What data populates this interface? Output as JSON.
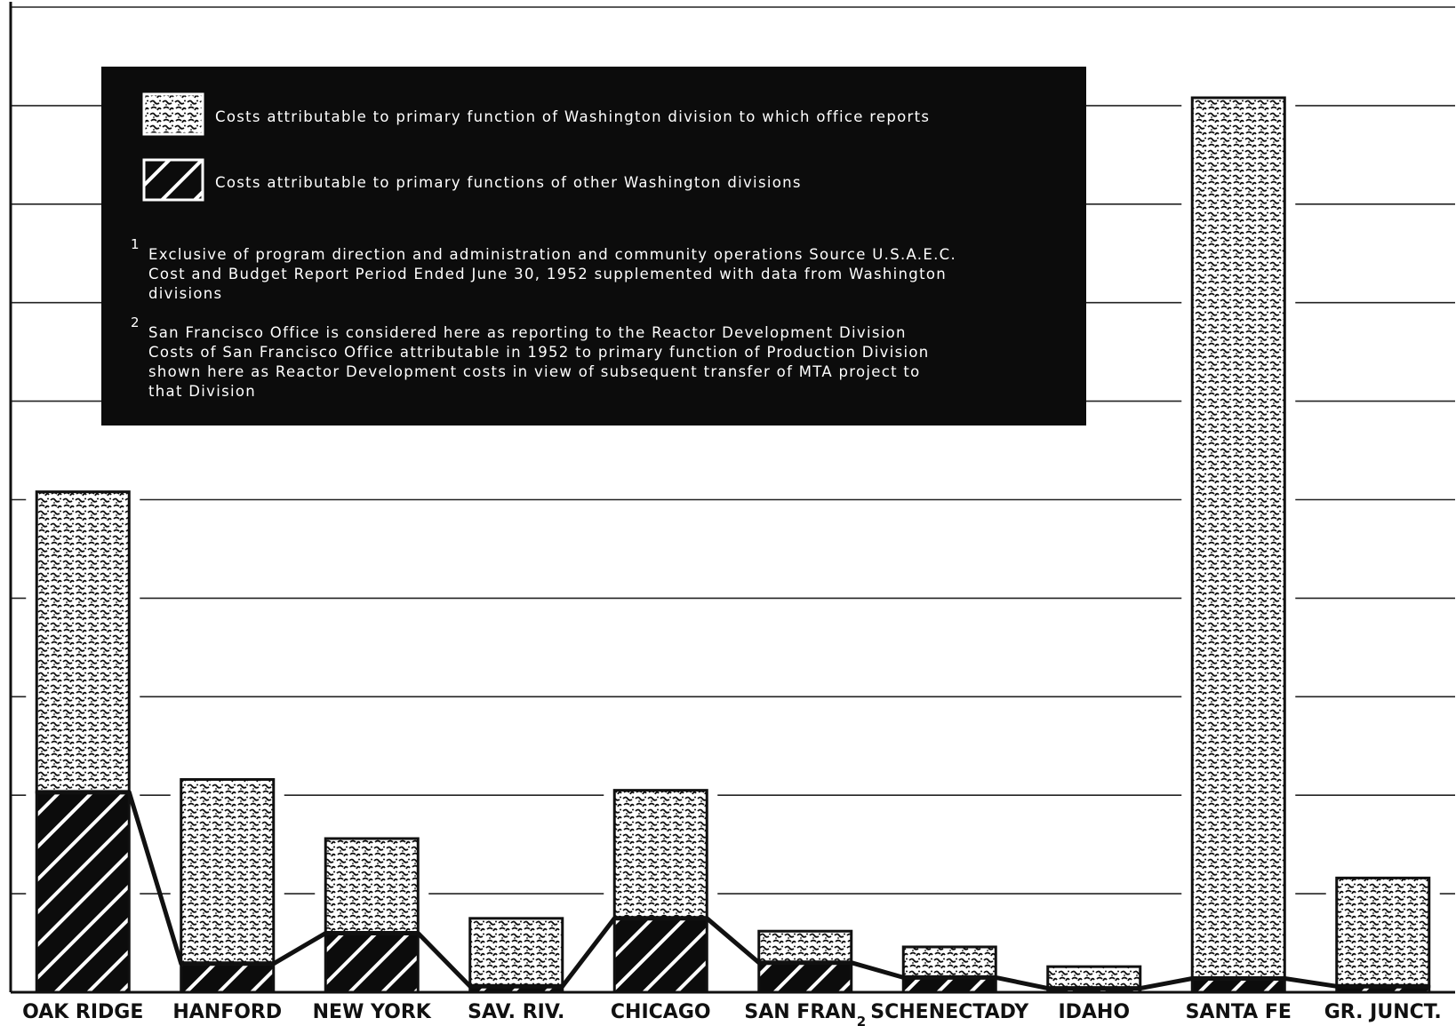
{
  "chart_data": {
    "type": "bar",
    "stacked": true,
    "categories": [
      "OAK RIDGE",
      "HANFORD",
      "NEW YORK",
      "SAV. RIV.",
      "CHICAGO",
      "SAN FRAN",
      "SCHENECTADY",
      "IDAHO",
      "SANTA FE",
      "GR. JUNCT."
    ],
    "category_superscripts": {
      "SAN FRAN": "2"
    },
    "series": [
      {
        "name": "Costs attributable to primary functions of other Washington divisions",
        "pattern": "hatch",
        "values": [
          20.3,
          2.9,
          6.0,
          0.6,
          7.5,
          3.0,
          1.5,
          0.4,
          1.4,
          0.6
        ]
      },
      {
        "name": "Costs attributable to primary function of Washington division to which office reports",
        "pattern": "stipple",
        "values": [
          30.5,
          18.7,
          9.6,
          6.9,
          13.0,
          3.2,
          3.1,
          2.2,
          89.4,
          11.0
        ]
      }
    ],
    "ylim": [
      0,
      100
    ],
    "grid": true,
    "gridlines": [
      10,
      20,
      30,
      40,
      50,
      60,
      70,
      80,
      90,
      100
    ],
    "legend_position": "top-left",
    "title": "",
    "xlabel": "",
    "ylabel": "",
    "colors": {
      "background": "#ffffff",
      "ink": "#111111",
      "legend_bg": "#0c0c0c"
    }
  },
  "legend": {
    "item1": "Costs attributable to primary function of Washington division to which office reports",
    "item2": "Costs attributable to primary functions of other Washington divisions"
  },
  "notes": {
    "n1_marker": "1",
    "n1_line1": "Exclusive of program direction and administration and community operations   Source   U.S.A.E.C.",
    "n1_line2": "Cost and Budget Report  Period Ended June 30, 1952  supplemented with data from Washington",
    "n1_line3": "divisions",
    "n2_marker": "2",
    "n2_line1": "San Francisco Office is considered here as reporting to the Reactor Development Division",
    "n2_line2": "Costs of San Francisco Office attributable in 1952 to primary function of Production Division",
    "n2_line3": "shown here as Reactor Development costs in view of subsequent transfer of MTA project to",
    "n2_line4": "that Division"
  }
}
